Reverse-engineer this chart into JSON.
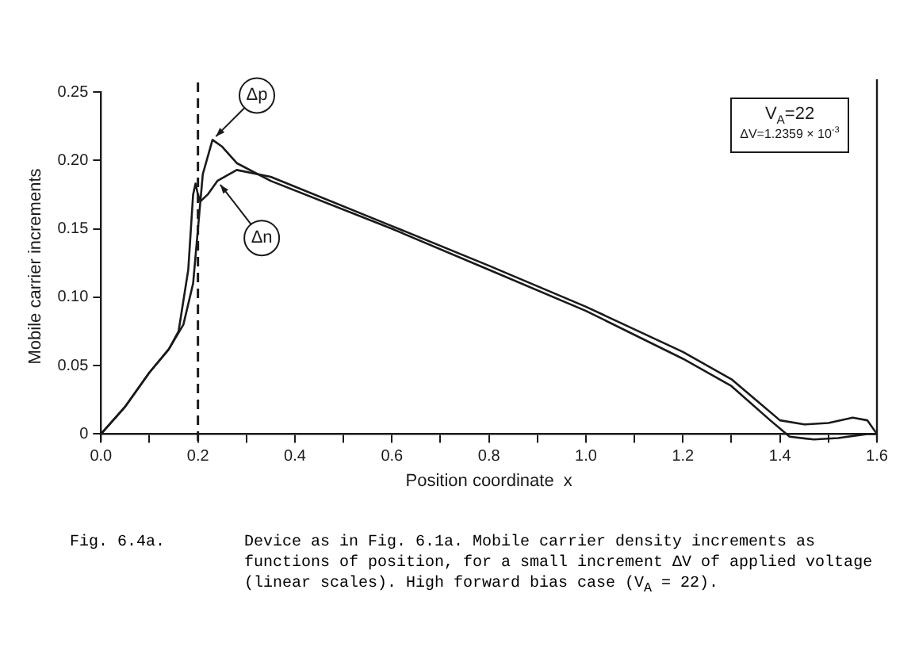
{
  "chart_data": {
    "type": "line",
    "xlabel": "Position coordinate  x",
    "ylabel": "Mobile carrier increments",
    "xlim": [
      0,
      1.6
    ],
    "ylim": [
      -0.005,
      0.25
    ],
    "xticks": [
      {
        "value": 0,
        "label": "0.0"
      },
      {
        "value": 0.1,
        "label": null
      },
      {
        "value": 0.2,
        "label": "0.2"
      },
      {
        "value": 0.3,
        "label": null
      },
      {
        "value": 0.4,
        "label": "0.4"
      },
      {
        "value": 0.5,
        "label": null
      },
      {
        "value": 0.6,
        "label": "0.6"
      },
      {
        "value": 0.7,
        "label": null
      },
      {
        "value": 0.8,
        "label": "0.8"
      },
      {
        "value": 0.9,
        "label": null
      },
      {
        "value": 1,
        "label": "1.0"
      },
      {
        "value": 1.1,
        "label": null
      },
      {
        "value": 1.2,
        "label": "1.2"
      },
      {
        "value": 1.3,
        "label": null
      },
      {
        "value": 1.4,
        "label": "1.4"
      },
      {
        "value": 1.5,
        "label": null
      },
      {
        "value": 1.6,
        "label": "1.6"
      }
    ],
    "yticks": [
      0,
      0.05,
      {
        "value": 0.1,
        "label": "0.10"
      },
      0.15,
      {
        "value": 0.2,
        "label": "0.20"
      },
      0.25
    ],
    "grid": false,
    "legend": false,
    "marker": "none",
    "line_style": "solid",
    "series": [
      {
        "color": "#1a1a1a",
        "x": [
          0,
          0.05,
          0.1,
          0.14,
          0.17,
          0.19,
          0.2,
          0.21,
          0.23,
          0.25,
          0.28,
          0.35,
          0.6,
          0.8,
          1.0,
          1.2,
          1.3,
          1.38,
          1.42,
          1.47,
          1.52,
          1.58,
          1.6
        ],
        "values": [
          0,
          0.02,
          0.045,
          0.062,
          0.08,
          0.11,
          0.15,
          0.19,
          0.215,
          0.21,
          0.198,
          0.185,
          0.15,
          0.12,
          0.09,
          0.055,
          0.035,
          0.01,
          -0.002,
          -0.004,
          -0.003,
          0,
          0
        ]
      },
      {
        "color": "#1a1a1a",
        "x": [
          0,
          0.05,
          0.1,
          0.14,
          0.16,
          0.18,
          0.19,
          0.195,
          0.2,
          0.205,
          0.22,
          0.24,
          0.28,
          0.35,
          0.6,
          0.8,
          1.0,
          1.2,
          1.3,
          1.4,
          1.45,
          1.5,
          1.55,
          1.58,
          1.6
        ],
        "values": [
          0,
          0.02,
          0.045,
          0.062,
          0.075,
          0.12,
          0.175,
          0.183,
          0.175,
          0.17,
          0.175,
          0.185,
          0.193,
          0.188,
          0.152,
          0.123,
          0.093,
          0.06,
          0.04,
          0.01,
          0.007,
          0.008,
          0.012,
          0.01,
          0
        ]
      }
    ],
    "ref_lines": [
      {
        "axis": "x",
        "value": 0.2,
        "line_style": "dashed",
        "color": "#1a1a1a"
      }
    ],
    "annotations": [
      {
        "text": "Δp",
        "x": 0.23,
        "y": 0.215
      },
      {
        "text": "Δn",
        "x": 0.24,
        "y": 0.185
      },
      "V$_{A}$=22",
      "ΔV=1.2359 × 10$^{-3}$",
      "Fig. 6.4a.",
      "Device as in Fig. 6.1a.  Mobile carrier density increments as functions of position, for a small increment ΔV of applied voltage (linear scales). High forward bias case (V$_{A}$ = 22)."
    ]
  }
}
